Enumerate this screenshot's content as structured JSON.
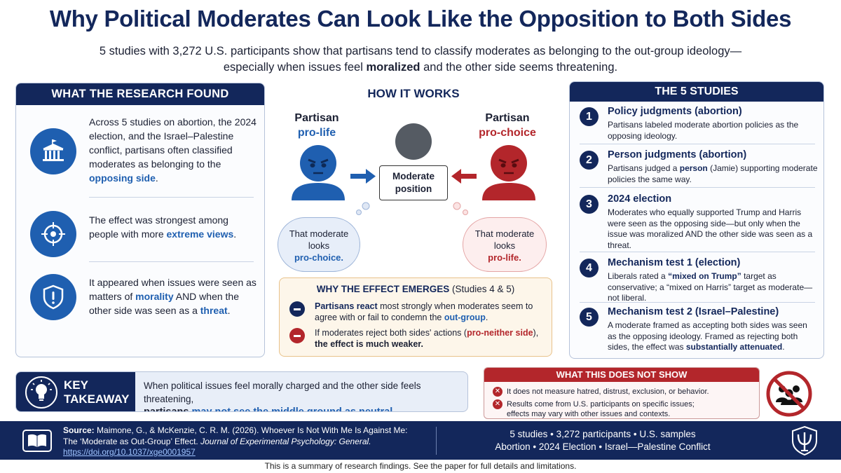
{
  "header": {
    "title": "Why Political Moderates Can Look Like the Opposition to Both Sides",
    "subtitle_line1": "5 studies with 3,272 U.S. participants show that partisans tend to classify moderates as belonging to the out-group ideology—",
    "subtitle_line2a": "especially when issues feel ",
    "subtitle_line2b": "moralized",
    "subtitle_line2c": " and the other side seems threatening."
  },
  "research": {
    "heading": "WHAT THE RESEARCH FOUND",
    "finding1": {
      "a": "Across 5 studies on abortion, the 2024 election, and the Israel–Palestine conflict, partisans often classified moderates as belonging to the ",
      "b": "opposing side",
      "c": "."
    },
    "finding2": {
      "a": "The effect was strongest among people with more ",
      "b": "extreme views",
      "c": "."
    },
    "finding3": {
      "a": "It appeared when issues were seen as matters of ",
      "b": "morality",
      "c": " AND when the other side was seen as a ",
      "d": "threat",
      "e": "."
    }
  },
  "how": {
    "heading": "HOW IT WORKS",
    "left_top": "Partisan",
    "left_bottom": "pro-life",
    "right_top": "Partisan",
    "right_bottom": "pro-choice",
    "moderate_line1": "Moderate",
    "moderate_line2": "position",
    "bubble_left": {
      "l1": "That moderate",
      "l2": "looks",
      "l3": "pro-choice."
    },
    "bubble_right": {
      "l1": "That moderate",
      "l2": "looks",
      "l3": "pro-life."
    }
  },
  "why": {
    "heading": "WHY THE EFFECT EMERGES",
    "heading_note": " (Studies 4 & 5)",
    "row1": {
      "a": "Partisans react",
      "b": " most strongly when moderates seem to agree with or fail to condemn the ",
      "c": "out-group",
      "d": "."
    },
    "row2": {
      "a": "If moderates reject both sides' actions (",
      "b": "pro-neither side",
      "c": "),",
      "d": "the effect is much weaker."
    }
  },
  "studies": {
    "heading": "THE 5 STUDIES",
    "items": [
      {
        "num": "1",
        "title": "Policy judgments (abortion)",
        "desc": "Partisans labeled moderate abortion policies as the opposing ideology."
      },
      {
        "num": "2",
        "title": "Person judgments (abortion)",
        "desc_a": "Partisans judged a ",
        "desc_b": "person",
        "desc_c": " (Jamie) supporting moderate policies the same way."
      },
      {
        "num": "3",
        "title": "2024 election",
        "desc": "Moderates who equally supported Trump and Harris were seen as the opposing side—but only when the issue was moralized AND the other side was seen as a threat."
      },
      {
        "num": "4",
        "title": "Mechanism test 1 (election)",
        "desc_a": "Liberals rated a ",
        "desc_b": "“mixed on Trump”",
        "desc_c": " target as conservative; a “mixed on Harris” target as moderate—not liberal."
      },
      {
        "num": "5",
        "title": "Mechanism test 2 (Israel–Palestine)",
        "desc_a": "A moderate framed as accepting both sides was seen as the opposing ideology.",
        "desc_b": "Framed as rejecting both sides, the effect was ",
        "desc_c": "substantially attenuated",
        "desc_d": "."
      }
    ]
  },
  "takeaway": {
    "label_line1": "KEY",
    "label_line2": "TAKEAWAY",
    "text_line1": "When political issues feel morally charged and the other side feels threatening,",
    "text_a": "partisans ",
    "text_b": "may not see the middle ground as neutral",
    "text_c": "."
  },
  "not_show": {
    "heading": "WHAT THIS DOES NOT SHOW",
    "item1": "It does not measure hatred, distrust, exclusion, or behavior.",
    "item2_line1": "Results come from U.S. participants on specific issues;",
    "item2_line2": "effects may vary with other issues and contexts."
  },
  "footer": {
    "source_label": "Source:",
    "source_line1": " Maimone, G., & McKenzie, C. R. M. (2026). Whoever Is Not With Me Is Against Me:",
    "source_line2a": "The ‘Moderate as Out-Group’ Effect. ",
    "source_journal": "Journal of Experimental Psychology: General.",
    "doi": "https://doi.org/10.1037/xge0001957",
    "stats_line1": "5 studies  •  3,272 participants  •  U.S. samples",
    "stats_line2": "Abortion  •  2024 Election  •  Israel—Palestine Conflict",
    "disclaimer": "This is a summary of research findings. See the paper for full details and limitations."
  },
  "colors": {
    "navy": "#13275b",
    "blue": "#1f5fb0",
    "red": "#b3262b"
  }
}
